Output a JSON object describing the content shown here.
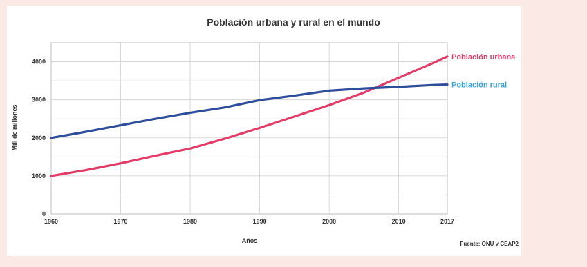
{
  "chart_data": {
    "type": "line",
    "title": "Población urbana y rural en el mundo",
    "xlabel": "Años",
    "ylabel": "Mill de millones",
    "xlim": [
      1960,
      2017
    ],
    "ylim": [
      0,
      4500
    ],
    "x_ticks": [
      "1960",
      "1970",
      "1980",
      "1990",
      "2000",
      "2010",
      "2017"
    ],
    "y_ticks": [
      "0",
      "1000",
      "2000",
      "3000",
      "4000"
    ],
    "grid": true,
    "source": "Fuente: ONU y CEAP2",
    "series": [
      {
        "name": "Población urbana",
        "color": "#e23c68",
        "points": [
          [
            1960,
            1000
          ],
          [
            1965,
            1150
          ],
          [
            1970,
            1330
          ],
          [
            1975,
            1530
          ],
          [
            1980,
            1720
          ],
          [
            1985,
            1980
          ],
          [
            1990,
            2260
          ],
          [
            1995,
            2560
          ],
          [
            2000,
            2860
          ],
          [
            2005,
            3190
          ],
          [
            2010,
            3580
          ],
          [
            2015,
            3970
          ],
          [
            2017,
            4140
          ]
        ]
      },
      {
        "name": "Población rural",
        "color": "#2e4e9a",
        "label_color": "#3aa4d8",
        "points": [
          [
            1960,
            2000
          ],
          [
            1965,
            2160
          ],
          [
            1970,
            2330
          ],
          [
            1975,
            2500
          ],
          [
            1980,
            2660
          ],
          [
            1985,
            2800
          ],
          [
            1990,
            2990
          ],
          [
            1995,
            3110
          ],
          [
            2000,
            3240
          ],
          [
            2005,
            3300
          ],
          [
            2010,
            3340
          ],
          [
            2015,
            3390
          ],
          [
            2017,
            3400
          ]
        ]
      }
    ]
  }
}
